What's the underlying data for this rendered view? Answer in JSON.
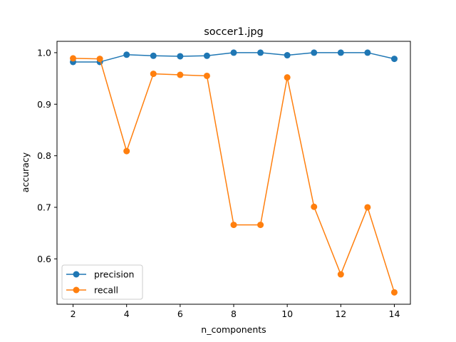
{
  "chart_data": {
    "type": "line",
    "title": "soccer1.jpg",
    "xlabel": "n_components",
    "ylabel": "accuracy",
    "x": [
      2,
      3,
      4,
      5,
      6,
      7,
      8,
      9,
      10,
      11,
      12,
      13,
      14
    ],
    "xlim": [
      1.4,
      14.6
    ],
    "ylim": [
      0.512,
      1.022
    ],
    "xticks": [
      2,
      4,
      6,
      8,
      10,
      12,
      14
    ],
    "yticks": [
      0.6,
      0.7,
      0.8,
      0.9,
      1.0
    ],
    "ytick_labels": [
      "0.6",
      "0.7",
      "0.8",
      "0.9",
      "1.0"
    ],
    "grid": false,
    "legend_position": "lower-left",
    "series": [
      {
        "name": "precision",
        "color": "#1f77b4",
        "marker": "circle",
        "values": [
          0.982,
          0.982,
          0.996,
          0.994,
          0.993,
          0.994,
          1.0,
          1.0,
          0.995,
          1.0,
          1.0,
          1.0,
          0.988
        ]
      },
      {
        "name": "recall",
        "color": "#ff7f0e",
        "marker": "circle",
        "values": [
          0.989,
          0.988,
          0.809,
          0.959,
          0.957,
          0.955,
          0.666,
          0.666,
          0.952,
          0.701,
          0.57,
          0.7,
          0.535
        ]
      }
    ]
  }
}
